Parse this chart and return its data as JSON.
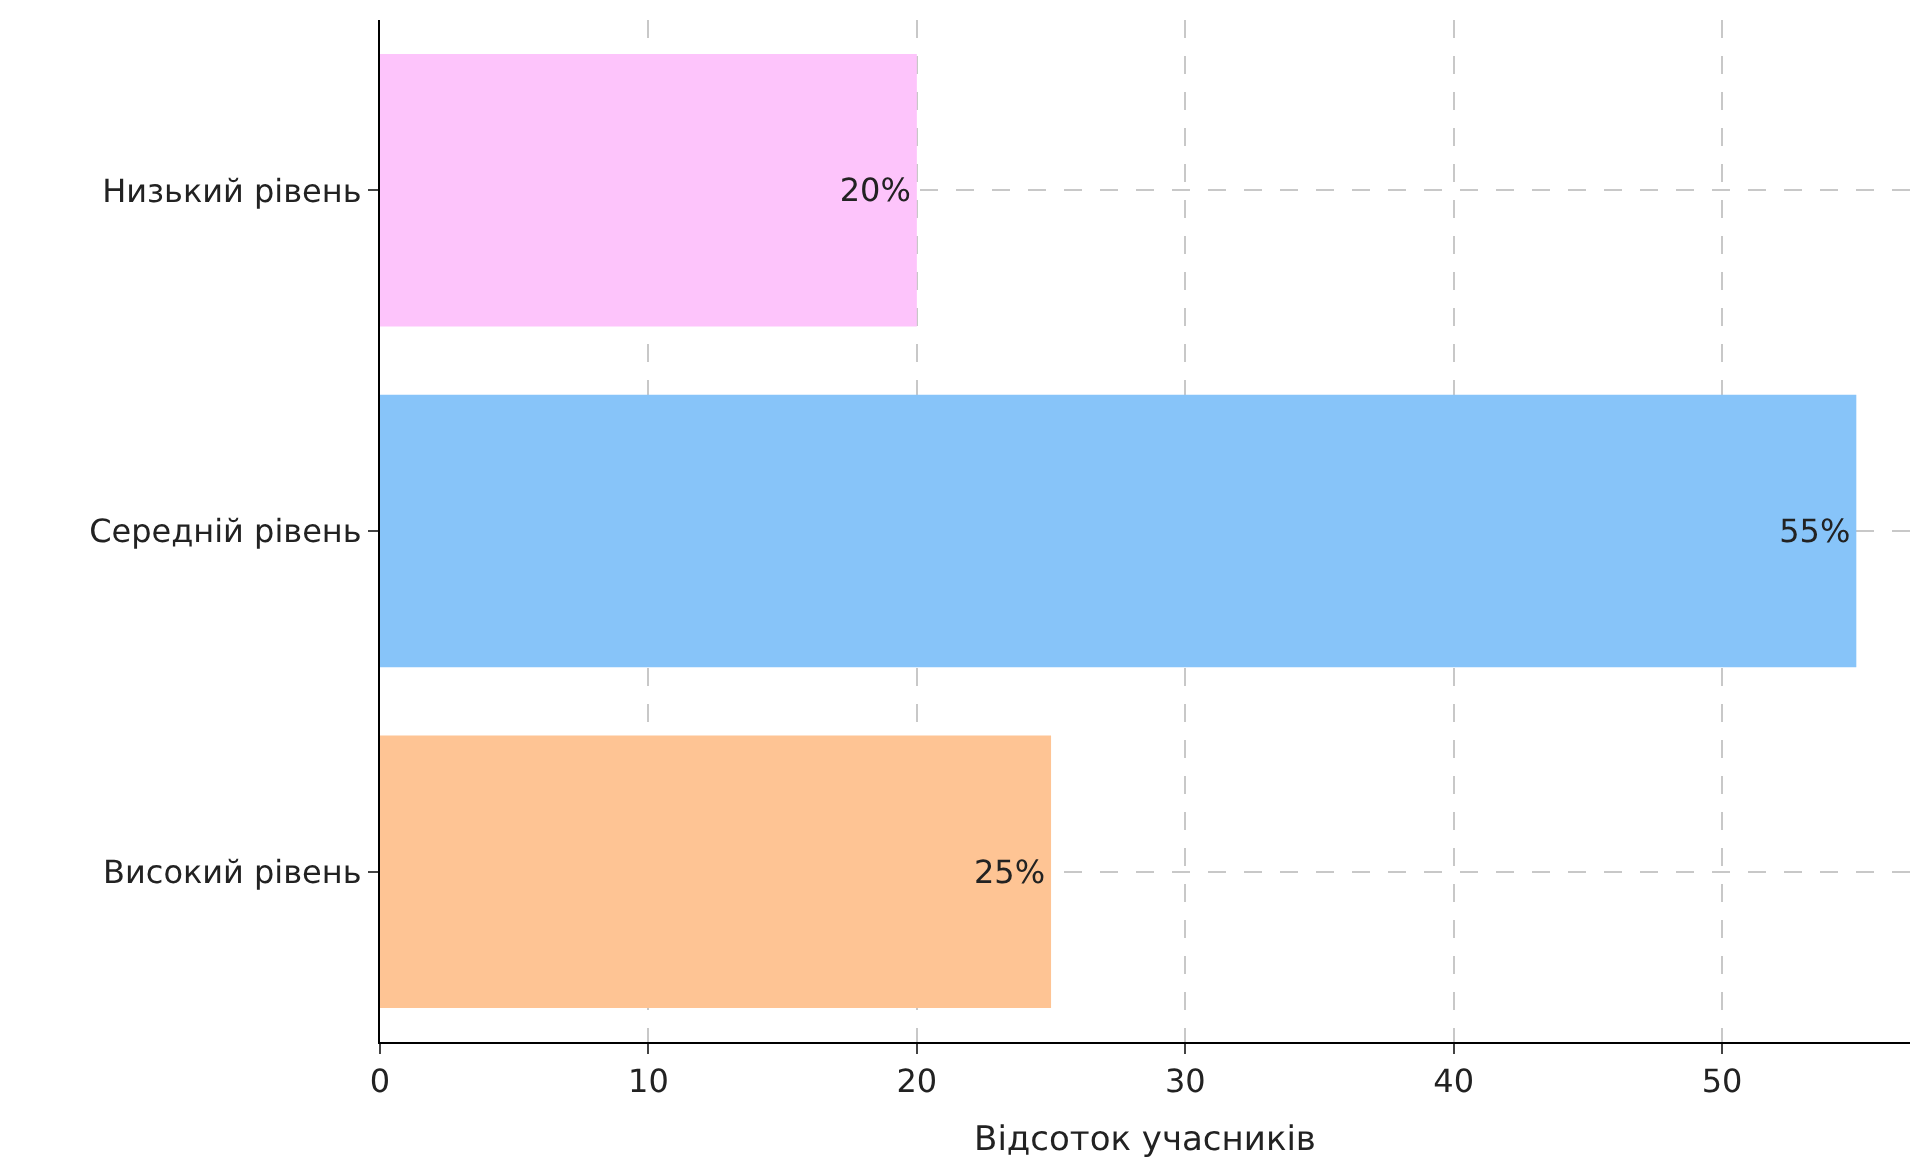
{
  "chart_data": {
    "type": "bar",
    "orientation": "horizontal",
    "categories": [
      "Низький рівень",
      "Середній рівень",
      "Високий рівень"
    ],
    "values": [
      20,
      55,
      25
    ],
    "colors": [
      "#fdc4fb",
      "#87c4f9",
      "#fec494"
    ],
    "value_labels": [
      "20%",
      "55%",
      "25%"
    ],
    "xlabel": "Відсоток учасників",
    "xlim": [
      0,
      57
    ],
    "xticks": [
      0,
      10,
      20,
      30,
      40,
      50
    ],
    "grid": true,
    "legend": false
  }
}
